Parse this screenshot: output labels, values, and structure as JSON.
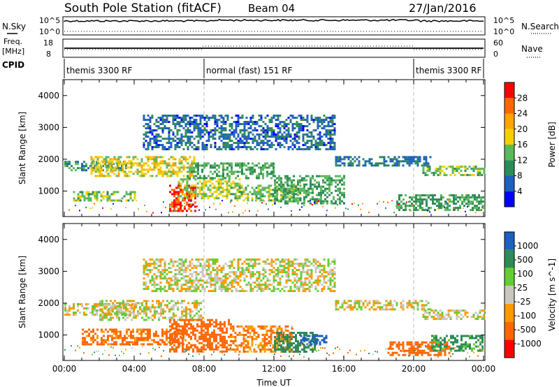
{
  "header": {
    "title": "South Pole Station (fitACF)",
    "beam": "Beam 04",
    "date": "27/Jan/2016"
  },
  "panels": {
    "nsky_label": "N.Sky",
    "nsearch_label": "N.Search",
    "freq_label_1": "Freq.",
    "freq_label_2": "[MHz]",
    "nave_label": "Nave",
    "cpid_label": "CPID",
    "nsky_ticks": [
      "10^5",
      "10^0"
    ],
    "nsearch_ticks": [
      "10^5",
      "10^0"
    ],
    "freq_ticks": [
      "18",
      "8"
    ],
    "nave_ticks": [
      "60",
      "0"
    ],
    "cpid_segments": [
      {
        "label": "themis 3300 RF",
        "start": 0,
        "end": 8
      },
      {
        "label": "normal (fast) 151 RF",
        "start": 8,
        "end": 20
      },
      {
        "label": "themis 3300 RF",
        "start": 20,
        "end": 24
      }
    ]
  },
  "colors": {
    "power_scale": [
      "#0000ff",
      "#1f5fbf",
      "#2e8b57",
      "#5cb85c",
      "#f5d000",
      "#ffa500",
      "#ff6600",
      "#ff0000"
    ],
    "velocity_scale": [
      "#ff0000",
      "#ff6600",
      "#ff9900",
      "#c8c8c0",
      "#66cc33",
      "#2e8b57",
      "#1f5fbf"
    ]
  },
  "chart_data": [
    {
      "type": "heatmap",
      "name": "power",
      "ylabel": "Slant Range [km]",
      "colorbar_label": "Power [dB]",
      "colorbar_ticks": [
        "28",
        "24",
        "20",
        "16",
        "12",
        "8",
        "4"
      ],
      "yticks": [
        "4000",
        "3000",
        "2000",
        "1000"
      ],
      "xlim": [
        0,
        24
      ],
      "ylim": [
        200,
        4500
      ],
      "clim": [
        0,
        32
      ],
      "regions": [
        {
          "t0": 0.0,
          "t1": 3.5,
          "r0": 1650,
          "r1": 1950,
          "value": 10
        },
        {
          "t0": 0.5,
          "t1": 4.0,
          "r0": 700,
          "r1": 1000,
          "value": 14
        },
        {
          "t0": 1.5,
          "t1": 7.5,
          "r0": 1500,
          "r1": 2100,
          "value": 18
        },
        {
          "t0": 6.0,
          "t1": 7.5,
          "r0": 400,
          "r1": 1200,
          "value": 28
        },
        {
          "t0": 6.5,
          "t1": 10.0,
          "r0": 800,
          "r1": 1400,
          "value": 16
        },
        {
          "t0": 7.0,
          "t1": 12.0,
          "r0": 1400,
          "r1": 1900,
          "value": 12
        },
        {
          "t0": 9.5,
          "t1": 13.5,
          "r0": 700,
          "r1": 1200,
          "value": 14
        },
        {
          "t0": 4.5,
          "t1": 15.5,
          "r0": 2300,
          "r1": 3400,
          "value": 7
        },
        {
          "t0": 12.0,
          "t1": 16.0,
          "r0": 600,
          "r1": 1500,
          "value": 12
        },
        {
          "t0": 15.5,
          "t1": 21.0,
          "r0": 1800,
          "r1": 2100,
          "value": 8
        },
        {
          "t0": 19.0,
          "t1": 24.0,
          "r0": 400,
          "r1": 900,
          "value": 12
        },
        {
          "t0": 20.5,
          "t1": 24.0,
          "r0": 1500,
          "r1": 1800,
          "value": 14
        }
      ]
    },
    {
      "type": "heatmap",
      "name": "velocity",
      "ylabel": "Slant Range [km]",
      "xlabel": "Time UT",
      "colorbar_label": "Velocity [m s^-1]",
      "colorbar_ticks": [
        "1000",
        "500",
        "100",
        "25",
        "-25",
        "-100",
        "-500",
        "-1000"
      ],
      "yticks": [
        "4000",
        "3000",
        "2000",
        "1000"
      ],
      "xticks": [
        "00:00",
        "04:00",
        "08:00",
        "12:00",
        "16:00",
        "20:00",
        "00:00"
      ],
      "xlim": [
        0,
        24
      ],
      "ylim": [
        200,
        4500
      ],
      "clim": [
        -1000,
        1000
      ],
      "regions": [
        {
          "t0": 0.0,
          "t1": 4.0,
          "r0": 1650,
          "r1": 2000,
          "value": 0
        },
        {
          "t0": 1.0,
          "t1": 7.0,
          "r0": 700,
          "r1": 1200,
          "value": -150
        },
        {
          "t0": 2.0,
          "t1": 8.0,
          "r0": 1500,
          "r1": 2100,
          "value": 0
        },
        {
          "t0": 6.0,
          "t1": 9.5,
          "r0": 500,
          "r1": 1500,
          "value": -300
        },
        {
          "t0": 9.5,
          "t1": 13.0,
          "r0": 500,
          "r1": 1300,
          "value": -100
        },
        {
          "t0": 12.0,
          "t1": 14.5,
          "r0": 500,
          "r1": 1100,
          "value": 200
        },
        {
          "t0": 13.5,
          "t1": 15.0,
          "r0": 700,
          "r1": 1000,
          "value": 700
        },
        {
          "t0": 4.5,
          "t1": 15.5,
          "r0": 2400,
          "r1": 3400,
          "value": 0
        },
        {
          "t0": 15.5,
          "t1": 21.0,
          "r0": 1800,
          "r1": 2100,
          "value": 0
        },
        {
          "t0": 18.5,
          "t1": 22.0,
          "r0": 400,
          "r1": 800,
          "value": -300
        },
        {
          "t0": 21.0,
          "t1": 24.0,
          "r0": 500,
          "r1": 1000,
          "value": 150
        },
        {
          "t0": 20.5,
          "t1": 24.0,
          "r0": 1500,
          "r1": 1800,
          "value": 0
        }
      ]
    }
  ]
}
